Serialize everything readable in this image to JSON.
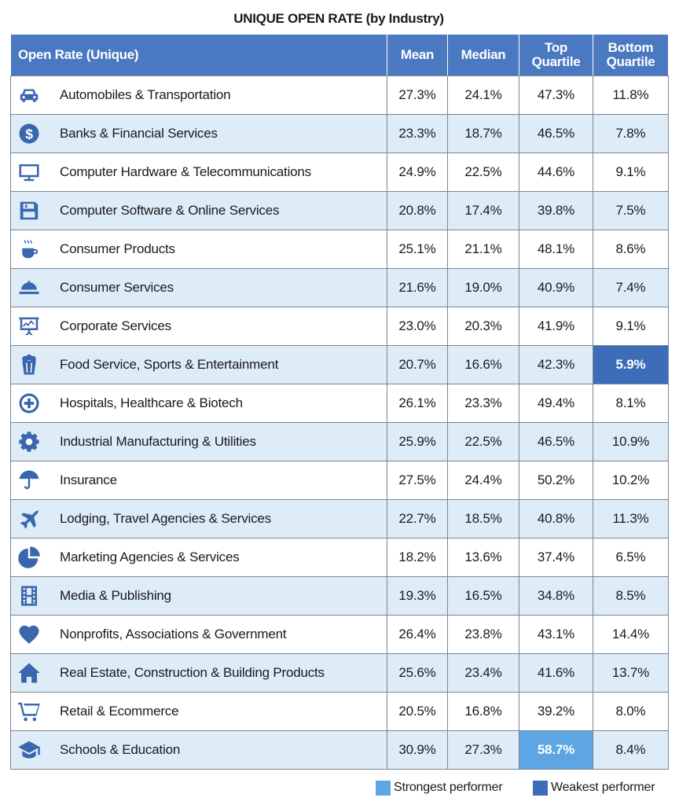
{
  "chart_data": {
    "type": "table",
    "title": "UNIQUE OPEN RATE (by Industry)",
    "columns": [
      "Open Rate (Unique)",
      "Mean",
      "Median",
      "Top Quartile",
      "Bottom Quartile"
    ],
    "rows": [
      {
        "industry": "Automobiles & Transportation",
        "icon": "car-icon",
        "mean": "27.3%",
        "median": "24.1%",
        "top": "47.3%",
        "bottom": "11.8%"
      },
      {
        "industry": "Banks & Financial Services",
        "icon": "dollar-coin-icon",
        "mean": "23.3%",
        "median": "18.7%",
        "top": "46.5%",
        "bottom": "7.8%"
      },
      {
        "industry": "Computer Hardware & Telecommunications",
        "icon": "monitor-icon",
        "mean": "24.9%",
        "median": "22.5%",
        "top": "44.6%",
        "bottom": "9.1%"
      },
      {
        "industry": "Computer Software & Online Services",
        "icon": "floppy-disk-icon",
        "mean": "20.8%",
        "median": "17.4%",
        "top": "39.8%",
        "bottom": "7.5%"
      },
      {
        "industry": "Consumer Products",
        "icon": "coffee-cup-icon",
        "mean": "25.1%",
        "median": "21.1%",
        "top": "48.1%",
        "bottom": "8.6%"
      },
      {
        "industry": "Consumer Services",
        "icon": "service-bell-icon",
        "mean": "21.6%",
        "median": "19.0%",
        "top": "40.9%",
        "bottom": "7.4%"
      },
      {
        "industry": "Corporate Services",
        "icon": "presentation-board-icon",
        "mean": "23.0%",
        "median": "20.3%",
        "top": "41.9%",
        "bottom": "9.1%"
      },
      {
        "industry": "Food Service, Sports & Entertainment",
        "icon": "popcorn-icon",
        "mean": "20.7%",
        "median": "16.6%",
        "top": "42.3%",
        "bottom": "5.9%"
      },
      {
        "industry": "Hospitals, Healthcare & Biotech",
        "icon": "medical-plus-icon",
        "mean": "26.1%",
        "median": "23.3%",
        "top": "49.4%",
        "bottom": "8.1%"
      },
      {
        "industry": "Industrial Manufacturing & Utilities",
        "icon": "gear-icon",
        "mean": "25.9%",
        "median": "22.5%",
        "top": "46.5%",
        "bottom": "10.9%"
      },
      {
        "industry": "Insurance",
        "icon": "umbrella-icon",
        "mean": "27.5%",
        "median": "24.4%",
        "top": "50.2%",
        "bottom": "10.2%"
      },
      {
        "industry": "Lodging, Travel Agencies & Services",
        "icon": "airplane-icon",
        "mean": "22.7%",
        "median": "18.5%",
        "top": "40.8%",
        "bottom": "11.3%"
      },
      {
        "industry": "Marketing Agencies & Services",
        "icon": "pie-chart-icon",
        "mean": "18.2%",
        "median": "13.6%",
        "top": "37.4%",
        "bottom": "6.5%"
      },
      {
        "industry": "Media & Publishing",
        "icon": "film-strip-icon",
        "mean": "19.3%",
        "median": "16.5%",
        "top": "34.8%",
        "bottom": "8.5%"
      },
      {
        "industry": "Nonprofits, Associations & Government",
        "icon": "heart-icon",
        "mean": "26.4%",
        "median": "23.8%",
        "top": "43.1%",
        "bottom": "14.4%"
      },
      {
        "industry": "Real Estate, Construction & Building Products",
        "icon": "house-icon",
        "mean": "25.6%",
        "median": "23.4%",
        "top": "41.6%",
        "bottom": "13.7%"
      },
      {
        "industry": "Retail & Ecommerce",
        "icon": "shopping-cart-icon",
        "mean": "20.5%",
        "median": "16.8%",
        "top": "39.2%",
        "bottom": "8.0%"
      },
      {
        "industry": "Schools & Education",
        "icon": "graduation-cap-icon",
        "mean": "30.9%",
        "median": "27.3%",
        "top": "58.7%",
        "bottom": "8.4%"
      }
    ],
    "highlights": {
      "strongest": {
        "row": 17,
        "column": "top",
        "color": "#5da5e3"
      },
      "weakest": {
        "row": 7,
        "column": "bottom",
        "color": "#3d6db8"
      }
    },
    "legend": [
      {
        "label": "Strongest performer",
        "color": "#5da5e3"
      },
      {
        "label": "Weakest performer",
        "color": "#3d6db8"
      }
    ]
  },
  "colors": {
    "header": "#4a78c1",
    "row_alt": "#deecf8",
    "icon": "#3a66ad"
  }
}
